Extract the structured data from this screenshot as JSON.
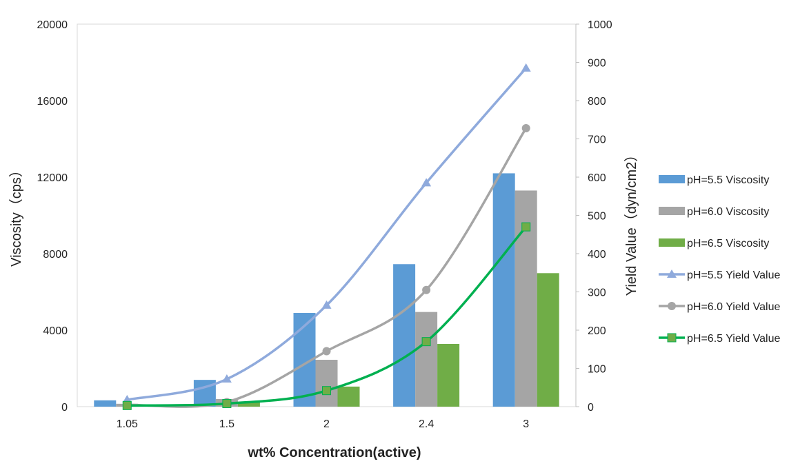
{
  "chart_data": {
    "type": "bar",
    "title": "",
    "xlabel": "wt% Concentration(active)",
    "ylabel": "Viscosity（cps）",
    "y2label": "Yield Value（dyn/cm2）",
    "categories": [
      "1.05",
      "1.5",
      "2",
      "2.4",
      "3"
    ],
    "ylim": [
      0,
      20000
    ],
    "yticks": [
      "0",
      "4000",
      "8000",
      "12000",
      "16000",
      "20000"
    ],
    "y2lim": [
      0,
      1000
    ],
    "y2ticks": [
      "0",
      "100",
      "200",
      "300",
      "400",
      "500",
      "600",
      "700",
      "800",
      "900",
      "1000"
    ],
    "grid": false,
    "legend_position": "right",
    "bar_series": [
      {
        "name": "pH=5.5 Viscosity",
        "color": "#5b9bd5",
        "values": [
          330,
          1400,
          4900,
          7450,
          12200
        ]
      },
      {
        "name": "pH=6.0 Viscosity",
        "color": "#a5a5a5",
        "values": [
          150,
          400,
          2450,
          4950,
          11300
        ]
      },
      {
        "name": "pH=6.5 Viscosity",
        "color": "#70ad47",
        "values": [
          100,
          250,
          1050,
          3280,
          6980
        ]
      }
    ],
    "line_series": [
      {
        "name": "pH=5.5 Yield Value",
        "color": "#8faadc",
        "marker": "triangle",
        "axis": "right",
        "values": [
          18,
          72,
          265,
          585,
          885
        ]
      },
      {
        "name": "pH=6.0 Yield Value",
        "color": "#a5a5a5",
        "marker": "circle",
        "axis": "right",
        "values": [
          5,
          12,
          145,
          305,
          728
        ]
      },
      {
        "name": "pH=6.5 Yield Value",
        "color": "#00b050",
        "marker_fill": "#70ad47",
        "marker": "square",
        "axis": "right",
        "values": [
          3,
          8,
          42,
          170,
          470
        ]
      }
    ]
  }
}
